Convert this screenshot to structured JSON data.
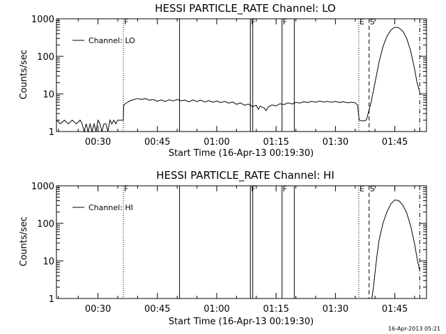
{
  "footer": {
    "timestamp": "16-Apr-2013 05:21"
  },
  "chart_data": [
    {
      "type": "line",
      "title": "HESSI PARTICLE_RATE Channel: LO",
      "xlabel": "Start Time (16-Apr-13 00:19:30)",
      "ylabel": "Counts/sec",
      "y_scale": "log",
      "ylim": [
        1,
        1000
      ],
      "y_ticks": [
        {
          "v": 1,
          "label": "1"
        },
        {
          "v": 10,
          "label": "10"
        },
        {
          "v": 100,
          "label": "100"
        },
        {
          "v": 1000,
          "label": "1000"
        }
      ],
      "xlim": [
        19.5,
        113.0
      ],
      "x_ticks": [
        {
          "v": 30,
          "label": "00:30"
        },
        {
          "v": 45,
          "label": "00:45"
        },
        {
          "v": 60,
          "label": "01:00"
        },
        {
          "v": 75,
          "label": "01:15"
        },
        {
          "v": 90,
          "label": "01:30"
        },
        {
          "v": 105,
          "label": "01:45"
        }
      ],
      "x_unit": "minutes after 00:00 UT",
      "legend": {
        "label": "Channel: LO",
        "position": "top-left"
      },
      "flags": [
        {
          "x": 36.4,
          "style": "dotted",
          "label": "F"
        },
        {
          "x": 50.6,
          "style": "solid",
          "label": ""
        },
        {
          "x": 68.5,
          "style": "solid",
          "label": "F"
        },
        {
          "x": 69.1,
          "style": "solid",
          "label": ""
        },
        {
          "x": 76.5,
          "style": "solid",
          "label": "F"
        },
        {
          "x": 79.6,
          "style": "solid",
          "label": ""
        },
        {
          "x": 95.9,
          "style": "dotted",
          "label": "E"
        },
        {
          "x": 98.5,
          "style": "dashed",
          "label": "S"
        },
        {
          "x": 111.3,
          "style": "dashdot",
          "label": ""
        }
      ],
      "series": [
        {
          "points": [
            [
              19.5,
              2.0
            ],
            [
              20.5,
              1.6
            ],
            [
              21.5,
              2.0
            ],
            [
              22.5,
              1.6
            ],
            [
              23.5,
              2.0
            ],
            [
              24.5,
              1.6
            ],
            [
              25.5,
              2.0
            ],
            [
              26.0,
              1.6
            ],
            [
              26.5,
              1.0
            ],
            [
              27.0,
              1.6
            ],
            [
              27.5,
              1.0
            ],
            [
              28.0,
              1.6
            ],
            [
              28.5,
              1.0
            ],
            [
              29.0,
              1.6
            ],
            [
              29.5,
              1.0
            ],
            [
              30.0,
              2.0
            ],
            [
              30.5,
              1.6
            ],
            [
              31.0,
              1.0
            ],
            [
              31.5,
              1.6
            ],
            [
              32.0,
              1.6
            ],
            [
              32.5,
              1.0
            ],
            [
              33.0,
              2.0
            ],
            [
              33.5,
              1.6
            ],
            [
              34.0,
              2.0
            ],
            [
              34.5,
              1.6
            ],
            [
              35.0,
              2.0
            ],
            [
              36.4,
              2.0
            ],
            [
              36.5,
              5.0
            ],
            [
              37.0,
              5.6
            ],
            [
              38.0,
              6.5
            ],
            [
              39.0,
              7.1
            ],
            [
              40.0,
              7.5
            ],
            [
              41.0,
              7.2
            ],
            [
              42.0,
              7.5
            ],
            [
              43.0,
              6.8
            ],
            [
              44.0,
              7.1
            ],
            [
              45.0,
              6.4
            ],
            [
              46.0,
              6.9
            ],
            [
              47.0,
              6.3
            ],
            [
              48.0,
              7.0
            ],
            [
              49.0,
              6.5
            ],
            [
              50.0,
              7.1
            ],
            [
              51.0,
              6.6
            ],
            [
              52.0,
              6.8
            ],
            [
              53.0,
              6.2
            ],
            [
              54.0,
              6.9
            ],
            [
              55.0,
              6.3
            ],
            [
              56.0,
              6.8
            ],
            [
              57.0,
              6.1
            ],
            [
              58.0,
              6.6
            ],
            [
              59.0,
              6.0
            ],
            [
              60.0,
              6.5
            ],
            [
              61.0,
              5.9
            ],
            [
              62.0,
              6.3
            ],
            [
              63.0,
              5.7
            ],
            [
              64.0,
              6.1
            ],
            [
              65.0,
              5.3
            ],
            [
              66.0,
              5.8
            ],
            [
              67.0,
              5.0
            ],
            [
              68.0,
              5.4
            ],
            [
              69.0,
              4.6
            ],
            [
              70.0,
              5.0
            ],
            [
              70.5,
              3.9
            ],
            [
              71.0,
              4.7
            ],
            [
              72.0,
              4.2
            ],
            [
              72.5,
              3.6
            ],
            [
              73.0,
              4.5
            ],
            [
              74.0,
              5.1
            ],
            [
              75.0,
              4.8
            ],
            [
              76.0,
              5.5
            ],
            [
              77.0,
              5.2
            ],
            [
              78.0,
              5.8
            ],
            [
              79.0,
              5.4
            ],
            [
              80.0,
              6.0
            ],
            [
              81.0,
              5.7
            ],
            [
              82.0,
              6.2
            ],
            [
              83.0,
              5.9
            ],
            [
              84.0,
              6.4
            ],
            [
              85.0,
              6.0
            ],
            [
              86.0,
              6.5
            ],
            [
              87.0,
              6.1
            ],
            [
              88.0,
              6.3
            ],
            [
              89.0,
              6.0
            ],
            [
              90.0,
              6.3
            ],
            [
              91.0,
              5.9
            ],
            [
              92.0,
              6.2
            ],
            [
              93.0,
              5.8
            ],
            [
              94.0,
              6.0
            ],
            [
              95.0,
              5.8
            ],
            [
              95.6,
              5.0
            ],
            [
              96.0,
              2.0
            ],
            [
              97.0,
              1.9
            ],
            [
              97.8,
              2.0
            ],
            [
              98.5,
              3.8
            ],
            [
              99.0,
              6
            ],
            [
              100.0,
              20
            ],
            [
              101.0,
              70
            ],
            [
              102.0,
              180
            ],
            [
              103.0,
              340
            ],
            [
              104.0,
              500
            ],
            [
              105.0,
              600
            ],
            [
              106.0,
              580
            ],
            [
              107.0,
              470
            ],
            [
              108.0,
              300
            ],
            [
              109.0,
              140
            ],
            [
              110.0,
              45
            ],
            [
              110.6,
              20
            ],
            [
              111.2,
              12
            ]
          ]
        }
      ]
    },
    {
      "type": "line",
      "title": "HESSI PARTICLE_RATE Channel: HI",
      "xlabel": "Start Time (16-Apr-13 00:19:30)",
      "ylabel": "Counts/sec",
      "y_scale": "log",
      "ylim": [
        1,
        1000
      ],
      "y_ticks": [
        {
          "v": 1,
          "label": "1"
        },
        {
          "v": 10,
          "label": "10"
        },
        {
          "v": 100,
          "label": "100"
        },
        {
          "v": 1000,
          "label": "1000"
        }
      ],
      "xlim": [
        19.5,
        113.0
      ],
      "x_ticks": [
        {
          "v": 30,
          "label": "00:30"
        },
        {
          "v": 45,
          "label": "00:45"
        },
        {
          "v": 60,
          "label": "01:00"
        },
        {
          "v": 75,
          "label": "01:15"
        },
        {
          "v": 90,
          "label": "01:30"
        },
        {
          "v": 105,
          "label": "01:45"
        }
      ],
      "x_unit": "minutes after 00:00 UT",
      "legend": {
        "label": "Channel: HI",
        "position": "top-left"
      },
      "flags": [
        {
          "x": 36.4,
          "style": "dotted",
          "label": "F"
        },
        {
          "x": 50.6,
          "style": "solid",
          "label": ""
        },
        {
          "x": 68.5,
          "style": "solid",
          "label": "F"
        },
        {
          "x": 69.1,
          "style": "solid",
          "label": ""
        },
        {
          "x": 76.5,
          "style": "solid",
          "label": "F"
        },
        {
          "x": 79.6,
          "style": "solid",
          "label": ""
        },
        {
          "x": 95.9,
          "style": "dotted",
          "label": "E"
        },
        {
          "x": 98.5,
          "style": "dashed",
          "label": "S"
        },
        {
          "x": 111.3,
          "style": "dashdot",
          "label": ""
        }
      ],
      "series": [
        {
          "points": [
            [
              99.2,
              1.0
            ],
            [
              99.6,
              2
            ],
            [
              100.0,
              5
            ],
            [
              100.5,
              14
            ],
            [
              101.0,
              35
            ],
            [
              102.0,
              100
            ],
            [
              103.0,
              200
            ],
            [
              104.0,
              330
            ],
            [
              105.0,
              420
            ],
            [
              106.0,
              400
            ],
            [
              107.0,
              310
            ],
            [
              108.0,
              190
            ],
            [
              109.0,
              85
            ],
            [
              110.0,
              28
            ],
            [
              110.6,
              12
            ],
            [
              111.2,
              6
            ]
          ]
        }
      ]
    }
  ]
}
